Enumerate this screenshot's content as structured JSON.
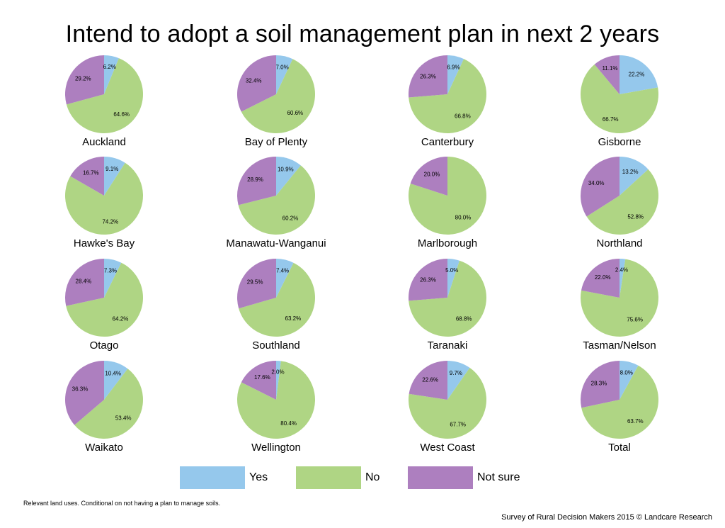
{
  "chart_data": {
    "type": "pie",
    "title": "Intend to adopt a soil management plan in next 2 years",
    "legend_position": "bottom",
    "categories": [
      "Yes",
      "No",
      "Not sure"
    ],
    "colors": {
      "Yes": "#95c8ec",
      "No": "#afd584",
      "Not sure": "#ad7fbf"
    },
    "charts": [
      {
        "region": "Auckland",
        "values": [
          6.2,
          64.6,
          29.2
        ],
        "labels": [
          "6.2%",
          "64.6%",
          "29.2%"
        ]
      },
      {
        "region": "Bay of Plenty",
        "values": [
          7.0,
          60.6,
          32.4
        ],
        "labels": [
          "7.0%",
          "60.6%",
          "32.4%"
        ]
      },
      {
        "region": "Canterbury",
        "values": [
          6.9,
          66.8,
          26.3
        ],
        "labels": [
          "6.9%",
          "66.8%",
          "26.3%"
        ]
      },
      {
        "region": "Gisborne",
        "values": [
          22.2,
          66.7,
          11.1
        ],
        "labels": [
          "22.2%",
          "66.7%",
          "11.1%"
        ]
      },
      {
        "region": "Hawke's Bay",
        "values": [
          9.1,
          74.2,
          16.7
        ],
        "labels": [
          "9.1%",
          "74.2%",
          "16.7%"
        ]
      },
      {
        "region": "Manawatu-Wanganui",
        "values": [
          10.9,
          60.2,
          28.9
        ],
        "labels": [
          "10.9%",
          "60.2%",
          "28.9%"
        ]
      },
      {
        "region": "Marlborough",
        "values": [
          0,
          80.0,
          20.0
        ],
        "labels": [
          "",
          "80.0%",
          "20.0%"
        ]
      },
      {
        "region": "Northland",
        "values": [
          13.2,
          52.8,
          34.0
        ],
        "labels": [
          "13.2%",
          "52.8%",
          "34.0%"
        ]
      },
      {
        "region": "Otago",
        "values": [
          7.3,
          64.2,
          28.4
        ],
        "labels": [
          "7.3%",
          "64.2%",
          "28.4%"
        ]
      },
      {
        "region": "Southland",
        "values": [
          7.4,
          63.2,
          29.5
        ],
        "labels": [
          "7.4%",
          "63.2%",
          "29.5%"
        ]
      },
      {
        "region": "Taranaki",
        "values": [
          5.0,
          68.8,
          26.3
        ],
        "labels": [
          "5.0%",
          "68.8%",
          "26.3%"
        ]
      },
      {
        "region": "Tasman/Nelson",
        "values": [
          2.4,
          75.6,
          22.0
        ],
        "labels": [
          "2.4%",
          "75.6%",
          "22.0%"
        ]
      },
      {
        "region": "Waikato",
        "values": [
          10.4,
          53.4,
          36.3
        ],
        "labels": [
          "10.4%",
          "53.4%",
          "36.3%"
        ]
      },
      {
        "region": "Wellington",
        "values": [
          2.0,
          80.4,
          17.6
        ],
        "labels": [
          "2.0%",
          "80.4%",
          "17.6%"
        ]
      },
      {
        "region": "West Coast",
        "values": [
          9.7,
          67.7,
          22.6
        ],
        "labels": [
          "9.7%",
          "67.7%",
          "22.6%"
        ]
      },
      {
        "region": "Total",
        "values": [
          8.0,
          63.7,
          28.3
        ],
        "labels": [
          "8.0%",
          "63.7%",
          "28.3%"
        ]
      }
    ]
  },
  "legend": {
    "yes": "Yes",
    "no": "No",
    "not_sure": "Not sure"
  },
  "footnote": "Relevant land uses. Conditional on not having a plan to manage soils.",
  "credit": "Survey of Rural Decision Makers 2015 © Landcare Research"
}
